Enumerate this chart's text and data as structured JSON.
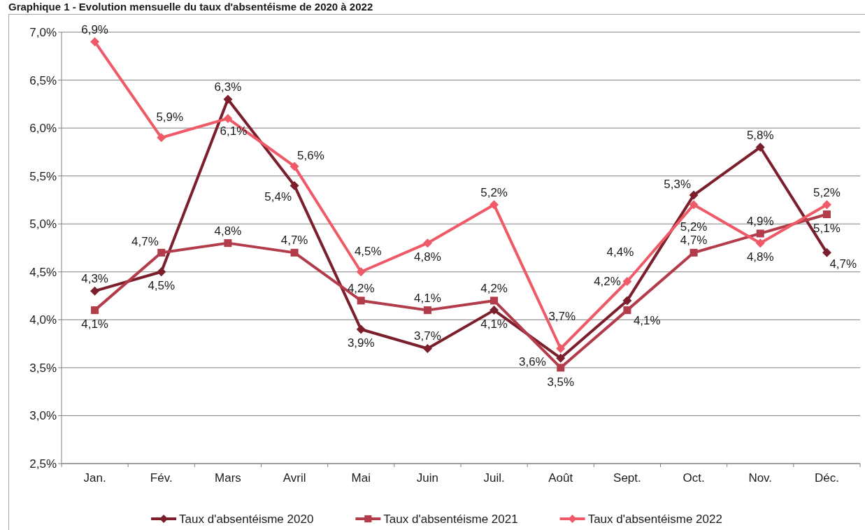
{
  "chart_data": {
    "type": "line",
    "title": "Graphique 1 - Evolution mensuelle du taux d'absentéisme de 2020 à 2022",
    "categories": [
      "Jan.",
      "Fév.",
      "Mars",
      "Avril",
      "Mai",
      "Juin",
      "Juil.",
      "Août",
      "Sept.",
      "Oct.",
      "Nov.",
      "Déc."
    ],
    "series": [
      {
        "name": "Taux d'absentéisme 2020",
        "color": "#7b1f2c",
        "marker": "diamond",
        "values": [
          4.3,
          4.5,
          6.3,
          5.4,
          3.9,
          3.7,
          4.1,
          3.6,
          4.2,
          5.3,
          5.8,
          4.7
        ],
        "value_labels": [
          "4,3%",
          "4,5%",
          "6,3%",
          "5,4%",
          "3,9%",
          "3,7%",
          "4,1%",
          "3,6%",
          "4,2%",
          "5,3%",
          "5,8%",
          "4,7%"
        ]
      },
      {
        "name": "Taux d'absentéisme 2021",
        "color": "#b33c4b",
        "marker": "square",
        "values": [
          4.1,
          4.7,
          4.8,
          4.7,
          4.2,
          4.1,
          4.2,
          3.5,
          4.1,
          4.7,
          4.9,
          5.1
        ],
        "value_labels": [
          "4,1%",
          "4,7%",
          "4,8%",
          "4,7%",
          "4,2%",
          "4,1%",
          "4,2%",
          "3,5%",
          "4,1%",
          "4,7%",
          "4,9%",
          "5,1%"
        ]
      },
      {
        "name": "Taux d'absentéisme 2022",
        "color": "#ee5a67",
        "marker": "diamond",
        "values": [
          6.9,
          5.9,
          6.1,
          5.6,
          4.5,
          4.8,
          5.2,
          3.7,
          4.4,
          5.2,
          4.8,
          5.2
        ],
        "value_labels": [
          "6,9%",
          "5,9%",
          "6,1%",
          "5,6%",
          "4,5%",
          "4,8%",
          "5,2%",
          "3,7%",
          "4,4%",
          "5,2%",
          "4,8%",
          "5,2%"
        ]
      }
    ],
    "ylim": [
      2.5,
      7.0
    ],
    "yticks": [
      {
        "value": 2.5,
        "label": "2,5%"
      },
      {
        "value": 3.0,
        "label": "3,0%"
      },
      {
        "value": 3.5,
        "label": "3,5%"
      },
      {
        "value": 4.0,
        "label": "4,0%"
      },
      {
        "value": 4.5,
        "label": "4,5%"
      },
      {
        "value": 5.0,
        "label": "5,0%"
      },
      {
        "value": 5.5,
        "label": "5,5%"
      },
      {
        "value": 6.0,
        "label": "6,0%"
      },
      {
        "value": 6.5,
        "label": "6,5%"
      },
      {
        "value": 7.0,
        "label": "7,0%"
      }
    ],
    "grid": "y",
    "legend": "bottom"
  }
}
